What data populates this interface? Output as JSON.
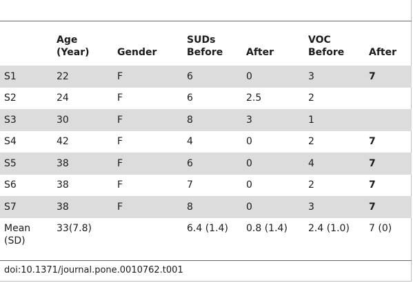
{
  "table": {
    "headers": {
      "subject": "",
      "age_line1": "Age",
      "age_line2": "(Year)",
      "gender": "Gender",
      "suds_line1": "SUDs",
      "suds_before": "Before",
      "suds_after": "After",
      "voc_line1": "VOC",
      "voc_before": "Before",
      "voc_after": "After"
    },
    "rows": [
      {
        "subject": "S1",
        "age": "22",
        "gender": "F",
        "suds_before": "6",
        "suds_after": "0",
        "voc_before": "3",
        "voc_after": "7"
      },
      {
        "subject": "S2",
        "age": "24",
        "gender": "F",
        "suds_before": "6",
        "suds_after": "2.5",
        "voc_before": "2",
        "voc_after": ""
      },
      {
        "subject": "S3",
        "age": "30",
        "gender": "F",
        "suds_before": "8",
        "suds_after": "3",
        "voc_before": "1",
        "voc_after": ""
      },
      {
        "subject": "S4",
        "age": "42",
        "gender": "F",
        "suds_before": "4",
        "suds_after": "0",
        "voc_before": "2",
        "voc_after": "7"
      },
      {
        "subject": "S5",
        "age": "38",
        "gender": "F",
        "suds_before": "6",
        "suds_after": "0",
        "voc_before": "4",
        "voc_after": "7"
      },
      {
        "subject": "S6",
        "age": "38",
        "gender": "F",
        "suds_before": "7",
        "suds_after": "0",
        "voc_before": "2",
        "voc_after": "7"
      },
      {
        "subject": "S7",
        "age": "38",
        "gender": "F",
        "suds_before": "8",
        "suds_after": "0",
        "voc_before": "3",
        "voc_after": "7"
      }
    ],
    "mean": {
      "label_line1": "Mean",
      "label_line2": "(SD)",
      "age": "33(7.8)",
      "gender": "",
      "suds_before": "6.4 (1.4)",
      "suds_after": "0.8 (1.4)",
      "voc_before": "2.4 (1.0)",
      "voc_after": "7 (0)"
    }
  },
  "footer": {
    "doi": "doi:10.1371/journal.pone.0010762.t001"
  },
  "colors": {
    "shaded_row": "#dcdcdc",
    "rule": "#6b6b6b",
    "text": "#1a1a1a"
  }
}
